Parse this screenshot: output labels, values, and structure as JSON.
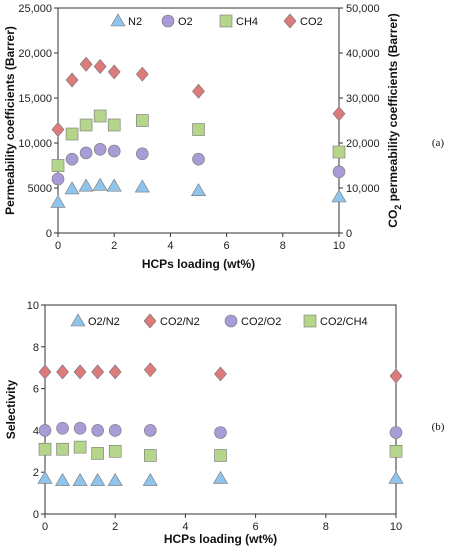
{
  "chart_data": [
    {
      "type": "scatter",
      "panel_label": "(a)",
      "xlabel": "HCPs loading (wt%)",
      "ylabel": "Permeability coefficients (Barrer)",
      "y2label_parts": [
        "CO",
        "2",
        " permeability coefficients (Barrer)"
      ],
      "xlim": [
        0,
        10
      ],
      "ylim": [
        0,
        25000
      ],
      "y2lim": [
        0,
        50000
      ],
      "x_ticks": [
        "0",
        "2",
        "4",
        "6",
        "8",
        "10"
      ],
      "y_ticks": [
        "0",
        "5000",
        "10,000",
        "15,000",
        "20,000",
        "25,000"
      ],
      "y2_ticks": [
        "0",
        "10,000",
        "20,000",
        "30,000",
        "40,000",
        "50,000"
      ],
      "legend_position": "top",
      "series": [
        {
          "name": "N2",
          "marker": "triangle",
          "color": "#8fc5ea",
          "axis": "left",
          "points": [
            [
              0,
              3400
            ],
            [
              0.5,
              4900
            ],
            [
              1,
              5200
            ],
            [
              1.5,
              5300
            ],
            [
              2,
              5200
            ],
            [
              3,
              5100
            ],
            [
              5,
              4700
            ],
            [
              10,
              4000
            ]
          ]
        },
        {
          "name": "O2",
          "marker": "circle",
          "color": "#a99bd6",
          "axis": "left",
          "points": [
            [
              0,
              6000
            ],
            [
              0.5,
              8200
            ],
            [
              1,
              8900
            ],
            [
              1.5,
              9300
            ],
            [
              2,
              9100
            ],
            [
              3,
              8800
            ],
            [
              5,
              8200
            ],
            [
              10,
              6800
            ]
          ]
        },
        {
          "name": "CH4",
          "marker": "square",
          "color": "#b5d68a",
          "axis": "left",
          "points": [
            [
              0,
              7500
            ],
            [
              0.5,
              11000
            ],
            [
              1,
              12000
            ],
            [
              1.5,
              13000
            ],
            [
              2,
              12000
            ],
            [
              3,
              12500
            ],
            [
              5,
              11500
            ],
            [
              10,
              9000
            ]
          ]
        },
        {
          "name": "CO2",
          "marker": "diamond",
          "color": "#dd7b7b",
          "axis": "right",
          "points": [
            [
              0,
              23000
            ],
            [
              0.5,
              34000
            ],
            [
              1,
              37500
            ],
            [
              1.5,
              37000
            ],
            [
              2,
              35800
            ],
            [
              3,
              35300
            ],
            [
              5,
              31500
            ],
            [
              10,
              26500
            ]
          ]
        }
      ]
    },
    {
      "type": "scatter",
      "panel_label": "(b)",
      "xlabel": "HCPs loading (wt%)",
      "ylabel": "Selectivity",
      "xlim": [
        0,
        10
      ],
      "ylim": [
        0,
        10
      ],
      "x_ticks": [
        "0",
        "2",
        "4",
        "6",
        "8",
        "10"
      ],
      "y_ticks": [
        "0",
        "2",
        "4",
        "6",
        "8",
        "10"
      ],
      "legend_position": "top",
      "series": [
        {
          "name": "O2/N2",
          "marker": "triangle",
          "color": "#8fc5ea",
          "points": [
            [
              0,
              1.7
            ],
            [
              0.5,
              1.6
            ],
            [
              1,
              1.6
            ],
            [
              1.5,
              1.6
            ],
            [
              2,
              1.6
            ],
            [
              3,
              1.6
            ],
            [
              5,
              1.7
            ],
            [
              10,
              1.7
            ]
          ]
        },
        {
          "name": "CO2/N2",
          "marker": "diamond",
          "color": "#dd7b7b",
          "points": [
            [
              0,
              6.8
            ],
            [
              0.5,
              6.8
            ],
            [
              1,
              6.8
            ],
            [
              1.5,
              6.8
            ],
            [
              2,
              6.8
            ],
            [
              3,
              6.9
            ],
            [
              5,
              6.7
            ],
            [
              10,
              6.6
            ]
          ]
        },
        {
          "name": "CO2/O2",
          "marker": "circle",
          "color": "#a99bd6",
          "points": [
            [
              0,
              4.0
            ],
            [
              0.5,
              4.1
            ],
            [
              1,
              4.1
            ],
            [
              1.5,
              4.0
            ],
            [
              2,
              4.0
            ],
            [
              3,
              4.0
            ],
            [
              5,
              3.9
            ],
            [
              10,
              3.9
            ]
          ]
        },
        {
          "name": "CO2/CH4",
          "marker": "square",
          "color": "#b5d68a",
          "points": [
            [
              0,
              3.1
            ],
            [
              0.5,
              3.1
            ],
            [
              1,
              3.2
            ],
            [
              1.5,
              2.9
            ],
            [
              2,
              3.0
            ],
            [
              3,
              2.8
            ],
            [
              5,
              2.8
            ],
            [
              10,
              3.0
            ]
          ]
        }
      ]
    }
  ]
}
